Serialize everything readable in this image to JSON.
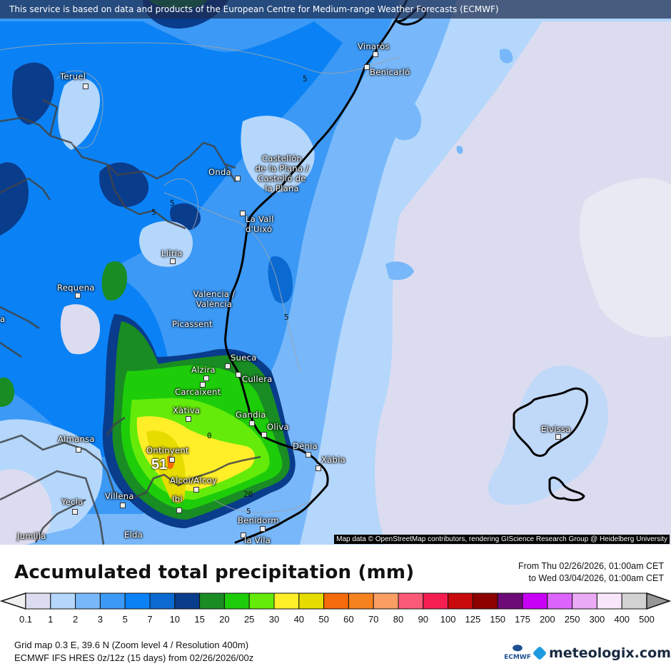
{
  "map": {
    "banner": "This service is based on data and products of the European Centre for Medium-range Weather Forecasts (ECMWF)",
    "attribution": "Map data © OpenStreetMap contributors, rendering GIScience Research Group @ Heidelberg University",
    "max_value_label": "51",
    "contour_labels": [
      "5",
      "5",
      "5",
      "5",
      "5",
      "0",
      "20",
      "5"
    ],
    "cities": [
      {
        "name": "Teruel"
      },
      {
        "name": "Vinaròs"
      },
      {
        "name": "Benicarló"
      },
      {
        "name": "Onda"
      },
      {
        "name": "Castellón de la Plana / Castelló de la Plana",
        "lines": [
          "Castellón",
          "de la Plana /",
          "Castelló de",
          "la Plana"
        ]
      },
      {
        "name": "La Vall d'Uixó",
        "lines": [
          "La Vall",
          "d'Uixó"
        ]
      },
      {
        "name": "Llíria"
      },
      {
        "name": "Requena"
      },
      {
        "name": "Valencia / València",
        "lines": [
          "Valencia /",
          "València"
        ]
      },
      {
        "name": "Picassent"
      },
      {
        "name": "Sueca"
      },
      {
        "name": "Alzira"
      },
      {
        "name": "Cullera"
      },
      {
        "name": "Carcaixent"
      },
      {
        "name": "Xàtiva"
      },
      {
        "name": "Gandia"
      },
      {
        "name": "Oliva"
      },
      {
        "name": "Almansa"
      },
      {
        "name": "Dénia"
      },
      {
        "name": "Xàbia"
      },
      {
        "name": "Ontinyent"
      },
      {
        "name": "Alcoi/Alcoy"
      },
      {
        "name": "Villena"
      },
      {
        "name": "Yecla"
      },
      {
        "name": "Ibi"
      },
      {
        "name": "Benidorm"
      },
      {
        "name": "Jumilla"
      },
      {
        "name": "Elda"
      },
      {
        "name": "la Vila"
      },
      {
        "name": "Eivissa"
      },
      {
        "name": "a"
      }
    ]
  },
  "header": {
    "title": "Accumulated total precipitation (mm)",
    "period_from": "From Thu 02/26/2026, 01:00am CET",
    "period_to": "to Wed 03/04/2026, 01:00am CET"
  },
  "legend": {
    "labels": [
      "0.1",
      "1",
      "2",
      "3",
      "5",
      "7",
      "10",
      "15",
      "20",
      "25",
      "30",
      "40",
      "50",
      "60",
      "70",
      "80",
      "90",
      "100",
      "125",
      "150",
      "175",
      "200",
      "250",
      "300",
      "400",
      "500"
    ],
    "colors": [
      "#dcdcf0",
      "#b4d7fb",
      "#78b8fa",
      "#3c99f5",
      "#0a82f5",
      "#0a6ad2",
      "#0a3c8c",
      "#198c23",
      "#1ecd0a",
      "#64eb0a",
      "#ffee28",
      "#e6dc00",
      "#f56a0a",
      "#f5821e",
      "#fa9e64",
      "#fa5a78",
      "#f51e50",
      "#c80a0a",
      "#8c0000",
      "#6e0a78",
      "#c800f5",
      "#dc64fa",
      "#ebaaf5",
      "#f8e6fa",
      "#d2d2d2"
    ],
    "under_color": "#f0f0f0",
    "over_color": "#969696"
  },
  "footer": {
    "grid_info": "Grid map 0.3 E, 39.6 N (Zoom level 4 / Resolution 400m)",
    "model_info": "ECMWF IFS HRES 0z/12z (15 days) from  02/26/2026/00z",
    "ecmwf_logo_text": "ECMWF",
    "brand": "meteologix.com"
  }
}
